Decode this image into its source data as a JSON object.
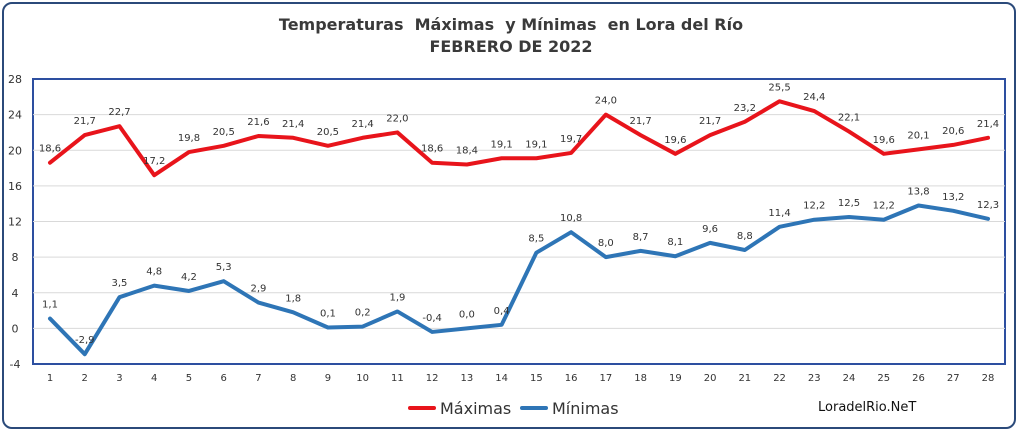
{
  "chart_data": {
    "type": "line",
    "title": "Temperaturas  Máximas  y Mínimas  en Lora del Río",
    "subtitle": "FEBRERO DE 2022",
    "x": [
      1,
      2,
      3,
      4,
      5,
      6,
      7,
      8,
      9,
      10,
      11,
      12,
      13,
      14,
      15,
      16,
      17,
      18,
      19,
      20,
      21,
      22,
      23,
      24,
      25,
      26,
      27,
      28
    ],
    "ylim": [
      -4,
      28
    ],
    "yticks": [
      -4,
      0,
      4,
      8,
      12,
      16,
      20,
      24,
      28
    ],
    "grid": true,
    "legend_position": "bottom",
    "series": [
      {
        "name": "Máximas",
        "color": "#e8141b",
        "values": [
          18.6,
          21.7,
          22.7,
          17.2,
          19.8,
          20.5,
          21.6,
          21.4,
          20.5,
          21.4,
          22.0,
          18.6,
          18.4,
          19.1,
          19.1,
          19.7,
          24.0,
          21.7,
          19.6,
          21.7,
          23.2,
          25.5,
          24.4,
          22.1,
          19.6,
          20.1,
          20.6,
          21.4
        ],
        "labels": [
          "18,6",
          "21,7",
          "22,7",
          "17,2",
          "19,8",
          "20,5",
          "21,6",
          "21,4",
          "20,5",
          "21,4",
          "22,0",
          "18,6",
          "18,4",
          "19,1",
          "19,1",
          "19,7",
          "24,0",
          "21,7",
          "19,6",
          "21,7",
          "23,2",
          "25,5",
          "24,4",
          "22,1",
          "19,6",
          "20,1",
          "20,6",
          "21,4"
        ]
      },
      {
        "name": "Mínimas",
        "color": "#2e75b6",
        "values": [
          1.1,
          -2.9,
          3.5,
          4.8,
          4.2,
          5.3,
          2.9,
          1.8,
          0.1,
          0.2,
          1.9,
          -0.4,
          0.0,
          0.4,
          8.5,
          10.8,
          8.0,
          8.7,
          8.1,
          9.6,
          8.8,
          11.4,
          12.2,
          12.5,
          12.2,
          13.8,
          13.2,
          12.3
        ],
        "labels": [
          "1,1",
          "-2,9",
          "3,5",
          "4,8",
          "4,2",
          "5,3",
          "2,9",
          "1,8",
          "0,1",
          "0,2",
          "1,9",
          "-0,4",
          "0,0",
          "0,4",
          "8,5",
          "10,8",
          "8,0",
          "8,7",
          "8,1",
          "9,6",
          "8,8",
          "11,4",
          "12,2",
          "12,5",
          "12,2",
          "13,8",
          "13,2",
          "12,3"
        ]
      }
    ],
    "watermark": "LoradelRio.NeT"
  }
}
